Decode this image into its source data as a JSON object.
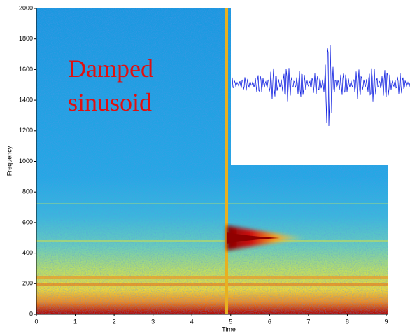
{
  "chart_data": {
    "type": "spectrogram",
    "xlabel": "Time",
    "ylabel": "Frequency",
    "annotation": [
      "Damped",
      "sinusoid"
    ],
    "xlim": [
      0,
      9
    ],
    "xticks": [
      0,
      1,
      2,
      3,
      4,
      5,
      6,
      7,
      8,
      9
    ],
    "ylim": [
      0,
      2000
    ],
    "yticks": [
      0,
      200,
      400,
      600,
      800,
      1000,
      1200,
      1400,
      1600,
      1800,
      2000
    ]
  }
}
